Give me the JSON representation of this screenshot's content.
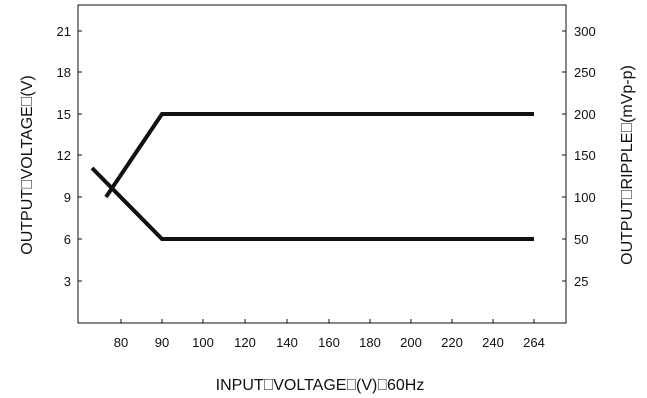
{
  "chart_data": {
    "type": "line",
    "title": "",
    "xlabel": "INPUT⎕VOLTAGE⎕(V)⎕60Hz",
    "ylabel_left": "OUTPUT⎕VOLTAGE⎕(V)",
    "ylabel_right": "OUTPUT⎕RIPPLE⎕(mVp-p)",
    "x_ticks": [
      "80",
      "90",
      "100",
      "120",
      "140",
      "160",
      "180",
      "200",
      "220",
      "240",
      "264"
    ],
    "y_left_ticks": [
      3,
      6,
      9,
      12,
      15,
      18,
      21
    ],
    "y_left_lim": [
      0,
      24
    ],
    "y_right_ticks": [
      25,
      50,
      100,
      150,
      200,
      250,
      300
    ],
    "grid": false,
    "series": [
      {
        "axis": "left",
        "points": [
          {
            "x": "75",
            "y": 9
          },
          {
            "x": "90",
            "y": 15
          },
          {
            "x": "264",
            "y": 15
          }
        ]
      },
      {
        "axis": "right",
        "points": [
          {
            "x": "70",
            "y": 135
          },
          {
            "x": "90",
            "y": 50
          },
          {
            "x": "264",
            "y": 50
          }
        ]
      }
    ]
  }
}
